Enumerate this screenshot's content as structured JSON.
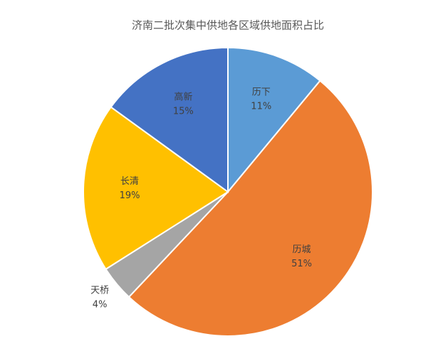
{
  "chart_data": {
    "type": "pie",
    "title": "济南二批次集中供地各区域供地面积占比",
    "categories": [
      "历下",
      "历城",
      "天桥",
      "长清",
      "高新"
    ],
    "values": [
      11,
      51,
      4,
      19,
      15
    ],
    "value_labels": [
      "11%",
      "51%",
      "4%",
      "19%",
      "15%"
    ],
    "colors": [
      "#5b9bd5",
      "#ed7d31",
      "#a5a5a5",
      "#ffc000",
      "#4472c4"
    ]
  }
}
